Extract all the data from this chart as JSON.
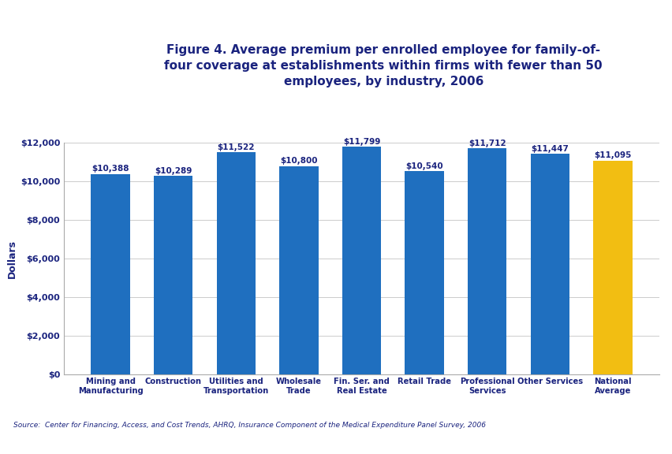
{
  "categories": [
    "Mining and\nManufacturing",
    "Construction",
    "Utilities and\nTransportation",
    "Wholesale\nTrade",
    "Fin. Ser. and\nReal Estate",
    "Retail Trade",
    "Professional\nServices",
    "Other Services",
    "National\nAverage"
  ],
  "values": [
    10388,
    10289,
    11522,
    10800,
    11799,
    10540,
    11712,
    11447,
    11095
  ],
  "bar_colors": [
    "#1F6FBF",
    "#1F6FBF",
    "#1F6FBF",
    "#1F6FBF",
    "#1F6FBF",
    "#1F6FBF",
    "#1F6FBF",
    "#1F6FBF",
    "#F2BE12"
  ],
  "bar_labels": [
    "$10,388",
    "$10,289",
    "$11,522",
    "$10,800",
    "$11,799",
    "$10,540",
    "$11,712",
    "$11,447",
    "$11,095"
  ],
  "ylabel": "Dollars",
  "ylim": [
    0,
    12000
  ],
  "yticks": [
    0,
    2000,
    4000,
    6000,
    8000,
    10000,
    12000
  ],
  "ytick_labels": [
    "$0",
    "$2,000",
    "$4,000",
    "$6,000",
    "$8,000",
    "$10,000",
    "$12,000"
  ],
  "title_line1": "Figure 4. Average premium per enrolled employee for family-of-",
  "title_line2": "four coverage at establishments within firms with fewer than 50",
  "title_line3": "employees, by industry, 2006",
  "source_text": "Source:  Center for Financing, Access, and Cost Trends, AHRQ, Insurance Component of the Medical Expenditure Panel Survey, 2006",
  "background_color": "#FFFFFF",
  "bar_label_color": "#1A237E",
  "axis_label_color": "#1A237E",
  "tick_label_color": "#1A237E",
  "title_color": "#1A237E",
  "header_bar_color": "#3949AB",
  "source_color": "#1A237E",
  "grid_color": "#CCCCCC",
  "figure_bg": "#FFFFFF",
  "logo_bg": "#1B8CC4",
  "top_stripe_color": "#3949AB",
  "bottom_stripe_color": "#3949AB"
}
